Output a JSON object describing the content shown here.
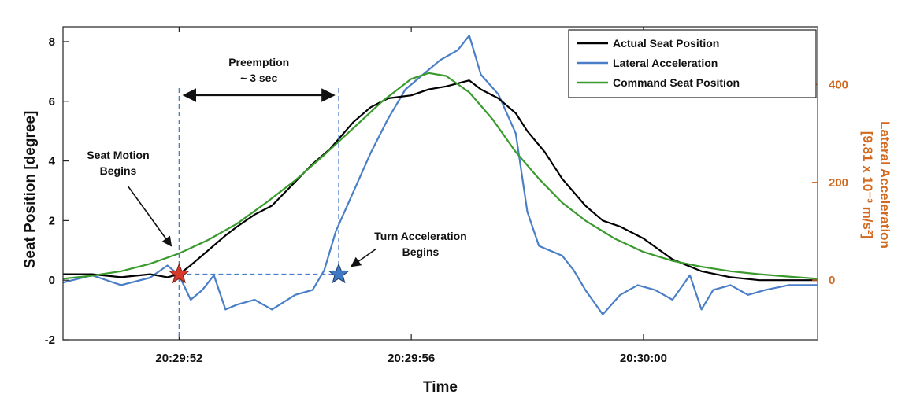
{
  "chart_data": {
    "type": "line",
    "title": "",
    "xlabel": "Time",
    "ylabel_left": "Seat Position [degree]",
    "ylabel_right_line1": "Lateral Acceleration",
    "ylabel_right_line2": "[9.81 x 10⁻³ m/s²]",
    "x_unit": "seconds",
    "xlim": [
      -2,
      11
    ],
    "xticks": [
      {
        "value": 0,
        "label": "20:29:52"
      },
      {
        "value": 4,
        "label": "20:29:56"
      },
      {
        "value": 8,
        "label": "20:30:00"
      }
    ],
    "ylim_left": [
      -2,
      8.5
    ],
    "yticks_left": [
      -2,
      0,
      2,
      4,
      6,
      8
    ],
    "ylim_right": [
      -122,
      518
    ],
    "yticks_right": [
      0,
      200,
      400
    ],
    "grid": false,
    "legend_position": "top-right",
    "colors": {
      "actual": "#000000",
      "lateral": "#4a7fc7",
      "command": "#3a9a2e",
      "right_axis": "#d2691e",
      "star_start": "#d63a2a",
      "star_turn": "#3f78c4",
      "guide": "#4a7fc7"
    },
    "series": [
      {
        "name": "Actual Seat Position",
        "axis": "left",
        "x": [
          -2.0,
          -1.5,
          -1.0,
          -0.5,
          -0.2,
          0.0,
          0.2,
          0.5,
          0.8,
          1.0,
          1.3,
          1.6,
          2.0,
          2.3,
          2.6,
          3.0,
          3.3,
          3.6,
          4.0,
          4.3,
          4.6,
          5.0,
          5.2,
          5.5,
          5.8,
          6.0,
          6.3,
          6.6,
          7.0,
          7.3,
          7.6,
          8.0,
          8.5,
          9.0,
          9.5,
          10.0,
          10.5,
          11.0
        ],
        "y": [
          0.2,
          0.2,
          0.1,
          0.2,
          0.1,
          0.2,
          0.5,
          1.0,
          1.5,
          1.8,
          2.2,
          2.5,
          3.3,
          3.9,
          4.4,
          5.3,
          5.8,
          6.1,
          6.2,
          6.4,
          6.5,
          6.7,
          6.4,
          6.1,
          5.6,
          5.0,
          4.3,
          3.4,
          2.5,
          2.0,
          1.8,
          1.4,
          0.7,
          0.3,
          0.1,
          0.0,
          0.0,
          0.0
        ]
      },
      {
        "name": "Lateral Acceleration",
        "axis": "right",
        "x": [
          -2.0,
          -1.5,
          -1.0,
          -0.5,
          -0.2,
          0.0,
          0.2,
          0.4,
          0.6,
          0.8,
          1.0,
          1.3,
          1.6,
          2.0,
          2.3,
          2.5,
          2.7,
          3.0,
          3.3,
          3.6,
          3.9,
          4.2,
          4.5,
          4.8,
          5.0,
          5.2,
          5.5,
          5.8,
          6.0,
          6.2,
          6.4,
          6.6,
          6.8,
          7.0,
          7.3,
          7.6,
          7.9,
          8.2,
          8.5,
          8.8,
          9.0,
          9.2,
          9.5,
          9.8,
          10.1,
          10.5,
          11.0
        ],
        "y": [
          -5,
          10,
          -10,
          5,
          30,
          10,
          -40,
          -20,
          10,
          -60,
          -50,
          -40,
          -60,
          -30,
          -20,
          20,
          100,
          180,
          260,
          330,
          390,
          420,
          450,
          470,
          500,
          420,
          380,
          300,
          140,
          70,
          60,
          50,
          20,
          -20,
          -70,
          -30,
          -10,
          -20,
          -40,
          10,
          -60,
          -20,
          -10,
          -30,
          -20,
          -10,
          -10
        ]
      },
      {
        "name": "Command Seat Position",
        "axis": "left",
        "x": [
          -2.0,
          -1.5,
          -1.0,
          -0.5,
          0.0,
          0.5,
          1.0,
          1.5,
          2.0,
          2.5,
          3.0,
          3.5,
          4.0,
          4.3,
          4.6,
          5.0,
          5.4,
          5.8,
          6.2,
          6.6,
          7.0,
          7.5,
          8.0,
          8.5,
          9.0,
          9.5,
          10.0,
          10.5,
          11.0
        ],
        "y": [
          0.05,
          0.15,
          0.3,
          0.55,
          0.9,
          1.35,
          1.9,
          2.6,
          3.35,
          4.2,
          5.1,
          6.0,
          6.75,
          6.95,
          6.85,
          6.3,
          5.4,
          4.3,
          3.4,
          2.6,
          2.0,
          1.4,
          0.95,
          0.65,
          0.45,
          0.3,
          0.2,
          0.12,
          0.05
        ]
      }
    ],
    "annotations": {
      "preemption_line1": "Preemption",
      "preemption_line2": "~ 3 sec",
      "seat_motion_line1": "Seat Motion",
      "seat_motion_line2": "Begins",
      "turn_accel_line1": "Turn Acceleration",
      "turn_accel_line2": "Begins",
      "seat_motion_start": {
        "x": 0.0,
        "y": 0.2
      },
      "turn_accel_start": {
        "x": 2.75,
        "y": 0.2
      },
      "preemption_from": 0.0,
      "preemption_to": 2.75
    }
  }
}
